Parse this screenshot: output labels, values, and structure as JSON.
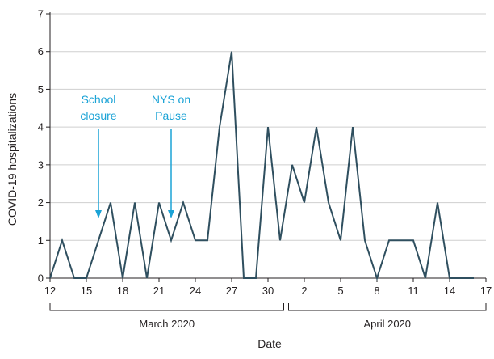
{
  "chart_data": {
    "type": "line",
    "ylabel": "COVID-19 hospitalizations",
    "xlabel": "Date",
    "ylim": [
      0,
      7
    ],
    "yticks": [
      0,
      1,
      2,
      3,
      4,
      5,
      6,
      7
    ],
    "xlim": [
      "2020-03-12",
      "2020-04-17"
    ],
    "xtick_labels": [
      {
        "date": "2020-03-12",
        "label": "12"
      },
      {
        "date": "2020-03-15",
        "label": "15"
      },
      {
        "date": "2020-03-18",
        "label": "18"
      },
      {
        "date": "2020-03-21",
        "label": "21"
      },
      {
        "date": "2020-03-24",
        "label": "24"
      },
      {
        "date": "2020-03-27",
        "label": "27"
      },
      {
        "date": "2020-03-30",
        "label": "30"
      },
      {
        "date": "2020-04-02",
        "label": "2"
      },
      {
        "date": "2020-04-05",
        "label": "5"
      },
      {
        "date": "2020-04-08",
        "label": "8"
      },
      {
        "date": "2020-04-11",
        "label": "11"
      },
      {
        "date": "2020-04-14",
        "label": "14"
      },
      {
        "date": "2020-04-17",
        "label": "17"
      }
    ],
    "month_groups": [
      {
        "label": "March 2020",
        "start": "2020-03-12",
        "end": "2020-03-31"
      },
      {
        "label": "April 2020",
        "start": "2020-04-01",
        "end": "2020-04-17"
      }
    ],
    "series": [
      {
        "color": "#2f4f5f",
        "points": [
          {
            "date": "2020-03-12",
            "value": 0
          },
          {
            "date": "2020-03-13",
            "value": 1
          },
          {
            "date": "2020-03-14",
            "value": 0
          },
          {
            "date": "2020-03-15",
            "value": 0
          },
          {
            "date": "2020-03-16",
            "value": 1
          },
          {
            "date": "2020-03-17",
            "value": 2
          },
          {
            "date": "2020-03-18",
            "value": 0
          },
          {
            "date": "2020-03-19",
            "value": 2
          },
          {
            "date": "2020-03-20",
            "value": 0
          },
          {
            "date": "2020-03-21",
            "value": 2
          },
          {
            "date": "2020-03-22",
            "value": 1
          },
          {
            "date": "2020-03-23",
            "value": 2
          },
          {
            "date": "2020-03-24",
            "value": 1
          },
          {
            "date": "2020-03-25",
            "value": 1
          },
          {
            "date": "2020-03-26",
            "value": 4
          },
          {
            "date": "2020-03-27",
            "value": 6
          },
          {
            "date": "2020-03-28",
            "value": 0
          },
          {
            "date": "2020-03-29",
            "value": 0
          },
          {
            "date": "2020-03-30",
            "value": 4
          },
          {
            "date": "2020-03-31",
            "value": 1
          },
          {
            "date": "2020-04-01",
            "value": 3
          },
          {
            "date": "2020-04-02",
            "value": 2
          },
          {
            "date": "2020-04-03",
            "value": 4
          },
          {
            "date": "2020-04-04",
            "value": 2
          },
          {
            "date": "2020-04-05",
            "value": 1
          },
          {
            "date": "2020-04-06",
            "value": 4
          },
          {
            "date": "2020-04-07",
            "value": 1
          },
          {
            "date": "2020-04-08",
            "value": 0
          },
          {
            "date": "2020-04-09",
            "value": 1
          },
          {
            "date": "2020-04-10",
            "value": 1
          },
          {
            "date": "2020-04-11",
            "value": 1
          },
          {
            "date": "2020-04-12",
            "value": 0
          },
          {
            "date": "2020-04-13",
            "value": 2
          },
          {
            "date": "2020-04-14",
            "value": 0
          },
          {
            "date": "2020-04-15",
            "value": 0
          },
          {
            "date": "2020-04-16",
            "value": 0
          }
        ]
      }
    ],
    "annotations": [
      {
        "lines": [
          "School",
          "closure"
        ],
        "date": "2020-03-16",
        "color": "#1ba3d6"
      },
      {
        "lines": [
          "NYS on",
          "Pause"
        ],
        "date": "2020-03-22",
        "color": "#1ba3d6"
      }
    ],
    "gridlines": true,
    "colors": {
      "line": "#2f4f5f",
      "grid": "#cfcfcf",
      "axis": "#231f20",
      "annotation": "#1ba3d6"
    }
  }
}
